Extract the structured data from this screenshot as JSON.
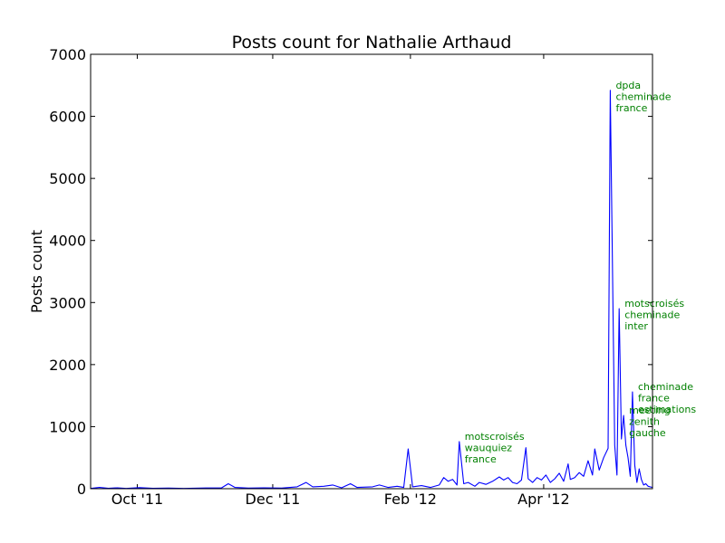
{
  "chart_data": {
    "type": "line",
    "title": "Posts count for Nathalie Arthaud",
    "xlabel": "",
    "ylabel": "Posts count",
    "ylim": [
      0,
      7000
    ],
    "xlim": [
      "2011-09-10",
      "2012-05-20"
    ],
    "yticks": [
      0,
      1000,
      2000,
      3000,
      4000,
      5000,
      6000,
      7000
    ],
    "xticks": [
      {
        "date": "2011-10-01",
        "label": "Oct '11"
      },
      {
        "date": "2011-12-01",
        "label": "Dec '11"
      },
      {
        "date": "2012-02-01",
        "label": "Feb '12"
      },
      {
        "date": "2012-04-01",
        "label": "Apr '12"
      }
    ],
    "grid": false,
    "series": [
      {
        "color": "#0000ff",
        "points": [
          [
            "2011-09-10",
            5
          ],
          [
            "2011-09-14",
            20
          ],
          [
            "2011-09-18",
            8
          ],
          [
            "2011-09-22",
            15
          ],
          [
            "2011-09-26",
            5
          ],
          [
            "2011-10-02",
            18
          ],
          [
            "2011-10-08",
            6
          ],
          [
            "2011-10-15",
            10
          ],
          [
            "2011-10-22",
            5
          ],
          [
            "2011-11-01",
            12
          ],
          [
            "2011-11-08",
            15
          ],
          [
            "2011-11-11",
            80
          ],
          [
            "2011-11-14",
            20
          ],
          [
            "2011-11-20",
            10
          ],
          [
            "2011-11-27",
            15
          ],
          [
            "2011-12-05",
            10
          ],
          [
            "2011-12-12",
            30
          ],
          [
            "2011-12-16",
            100
          ],
          [
            "2011-12-19",
            30
          ],
          [
            "2011-12-24",
            40
          ],
          [
            "2011-12-28",
            60
          ],
          [
            "2012-01-01",
            15
          ],
          [
            "2012-01-05",
            80
          ],
          [
            "2012-01-08",
            20
          ],
          [
            "2012-01-15",
            30
          ],
          [
            "2012-01-18",
            60
          ],
          [
            "2012-01-22",
            20
          ],
          [
            "2012-01-26",
            40
          ],
          [
            "2012-01-29",
            20
          ],
          [
            "2012-01-31",
            640
          ],
          [
            "2012-02-02",
            30
          ],
          [
            "2012-02-06",
            50
          ],
          [
            "2012-02-10",
            20
          ],
          [
            "2012-02-14",
            60
          ],
          [
            "2012-02-16",
            180
          ],
          [
            "2012-02-18",
            120
          ],
          [
            "2012-02-20",
            150
          ],
          [
            "2012-02-22",
            60
          ],
          [
            "2012-02-23",
            760
          ],
          [
            "2012-02-25",
            80
          ],
          [
            "2012-02-27",
            100
          ],
          [
            "2012-03-01",
            40
          ],
          [
            "2012-03-03",
            100
          ],
          [
            "2012-03-06",
            70
          ],
          [
            "2012-03-09",
            120
          ],
          [
            "2012-03-12",
            190
          ],
          [
            "2012-03-14",
            140
          ],
          [
            "2012-03-16",
            180
          ],
          [
            "2012-03-18",
            100
          ],
          [
            "2012-03-20",
            80
          ],
          [
            "2012-03-22",
            140
          ],
          [
            "2012-03-24",
            660
          ],
          [
            "2012-03-25",
            160
          ],
          [
            "2012-03-27",
            100
          ],
          [
            "2012-03-29",
            180
          ],
          [
            "2012-03-31",
            140
          ],
          [
            "2012-04-02",
            220
          ],
          [
            "2012-04-04",
            100
          ],
          [
            "2012-04-06",
            160
          ],
          [
            "2012-04-08",
            250
          ],
          [
            "2012-04-10",
            120
          ],
          [
            "2012-04-12",
            400
          ],
          [
            "2012-04-13",
            150
          ],
          [
            "2012-04-15",
            180
          ],
          [
            "2012-04-17",
            260
          ],
          [
            "2012-04-19",
            200
          ],
          [
            "2012-04-21",
            450
          ],
          [
            "2012-04-23",
            220
          ],
          [
            "2012-04-24",
            640
          ],
          [
            "2012-04-26",
            300
          ],
          [
            "2012-04-28",
            500
          ],
          [
            "2012-04-30",
            650
          ],
          [
            "2012-05-01",
            6420
          ],
          [
            "2012-05-03",
            700
          ],
          [
            "2012-05-04",
            220
          ],
          [
            "2012-05-05",
            2900
          ],
          [
            "2012-05-06",
            800
          ],
          [
            "2012-05-07",
            1180
          ],
          [
            "2012-05-08",
            700
          ],
          [
            "2012-05-09",
            500
          ],
          [
            "2012-05-10",
            200
          ],
          [
            "2012-05-11",
            1560
          ],
          [
            "2012-05-12",
            380
          ],
          [
            "2012-05-13",
            100
          ],
          [
            "2012-05-14",
            320
          ],
          [
            "2012-05-15",
            150
          ],
          [
            "2012-05-16",
            60
          ],
          [
            "2012-05-17",
            80
          ],
          [
            "2012-05-18",
            40
          ],
          [
            "2012-05-20",
            20
          ]
        ]
      }
    ],
    "annotations": [
      {
        "lines": [
          "motscroisés",
          "wauquiez",
          "france"
        ],
        "date": "2012-02-23",
        "y": 760
      },
      {
        "lines": [
          "dpda",
          "cheminade",
          "france"
        ],
        "date": "2012-05-01",
        "y": 6420
      },
      {
        "lines": [
          "motscroisés",
          "cheminade",
          "inter"
        ],
        "date": "2012-05-05",
        "y": 2900
      },
      {
        "lines": [
          "cheminade",
          "france",
          "estimations"
        ],
        "date": "2012-05-11",
        "y": 1560
      },
      {
        "lines": [
          "meeting",
          "zenith",
          "gauche"
        ],
        "date": "2012-05-07",
        "y": 1180
      }
    ]
  }
}
